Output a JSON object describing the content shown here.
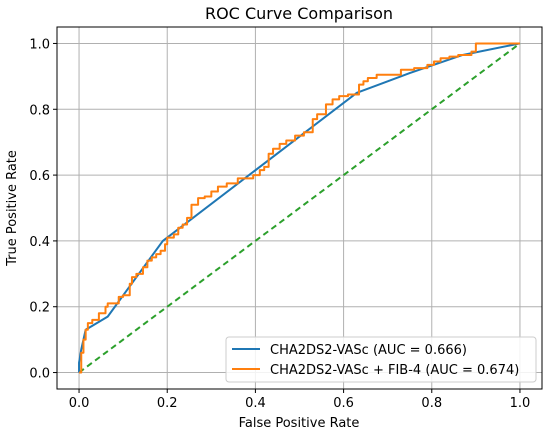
{
  "chart_data": {
    "type": "line",
    "title": "ROC Curve Comparison",
    "xlabel": "False Positive Rate",
    "ylabel": "True Positive Rate",
    "xlim": [
      -0.05,
      1.05
    ],
    "ylim": [
      -0.05,
      1.05
    ],
    "xticks": [
      "0.0",
      "0.2",
      "0.4",
      "0.6",
      "0.8",
      "1.0"
    ],
    "yticks": [
      "0.0",
      "0.2",
      "0.4",
      "0.6",
      "0.8",
      "1.0"
    ],
    "grid": true,
    "legend_position": "lower-right",
    "series": [
      {
        "name": "CHA2DS2-VASc (AUC = 0.666)",
        "color": "#1f77b4",
        "style": "solid",
        "x": [
          0.0,
          0.0,
          0.005,
          0.01,
          0.015,
          0.065,
          0.19,
          0.63,
          0.75,
          0.87,
          1.0
        ],
        "y": [
          0.0,
          0.03,
          0.07,
          0.1,
          0.13,
          0.17,
          0.4,
          0.85,
          0.91,
          0.965,
          1.0
        ]
      },
      {
        "name": "CHA2DS2-VASc + FIB-4 (AUC = 0.674)",
        "color": "#ff7f0e",
        "style": "step",
        "x": [
          0.0,
          0.005,
          0.01,
          0.015,
          0.02,
          0.03,
          0.045,
          0.06,
          0.065,
          0.09,
          0.1,
          0.115,
          0.12,
          0.13,
          0.145,
          0.155,
          0.165,
          0.175,
          0.185,
          0.195,
          0.2,
          0.215,
          0.225,
          0.235,
          0.245,
          0.255,
          0.27,
          0.285,
          0.3,
          0.315,
          0.335,
          0.36,
          0.395,
          0.41,
          0.42,
          0.43,
          0.44,
          0.455,
          0.47,
          0.49,
          0.51,
          0.53,
          0.54,
          0.56,
          0.575,
          0.59,
          0.61,
          0.635,
          0.645,
          0.655,
          0.675,
          0.73,
          0.76,
          0.79,
          0.805,
          0.82,
          0.84,
          0.86,
          0.89,
          0.9,
          1.0
        ],
        "y": [
          0.0,
          0.06,
          0.1,
          0.13,
          0.15,
          0.16,
          0.18,
          0.2,
          0.21,
          0.23,
          0.235,
          0.27,
          0.29,
          0.3,
          0.32,
          0.34,
          0.35,
          0.36,
          0.37,
          0.39,
          0.41,
          0.42,
          0.44,
          0.45,
          0.47,
          0.51,
          0.53,
          0.535,
          0.55,
          0.565,
          0.575,
          0.59,
          0.6,
          0.615,
          0.625,
          0.665,
          0.68,
          0.695,
          0.705,
          0.72,
          0.73,
          0.77,
          0.785,
          0.815,
          0.83,
          0.84,
          0.845,
          0.875,
          0.885,
          0.895,
          0.905,
          0.92,
          0.925,
          0.935,
          0.945,
          0.955,
          0.96,
          0.965,
          0.975,
          1.0,
          1.0
        ]
      },
      {
        "name": "",
        "color": "#2ca02c",
        "style": "dashed",
        "x": [
          0.0,
          1.0
        ],
        "y": [
          0.0,
          1.0
        ]
      }
    ]
  }
}
